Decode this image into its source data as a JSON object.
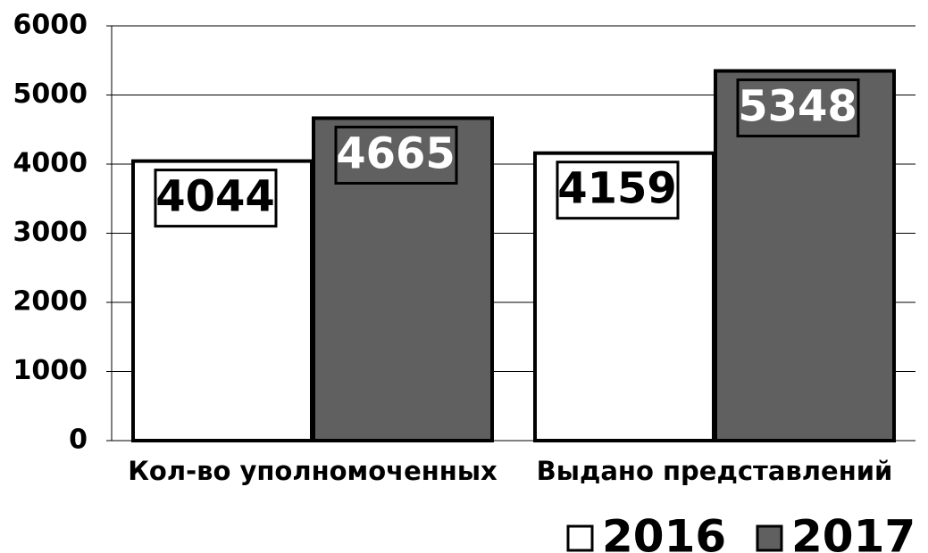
{
  "chart_data": {
    "type": "bar",
    "categories": [
      "Кол-во уполномоченных",
      "Выдано представлений"
    ],
    "series": [
      {
        "name": "2016",
        "color": "#ffffff",
        "values": [
          4044,
          4159
        ]
      },
      {
        "name": "2017",
        "color": "#606060",
        "values": [
          4665,
          5348
        ]
      }
    ],
    "ylim": [
      0,
      6000
    ],
    "yticks": [
      0,
      1000,
      2000,
      3000,
      4000,
      5000,
      6000
    ],
    "grid": true,
    "legend": "bottom-right"
  }
}
